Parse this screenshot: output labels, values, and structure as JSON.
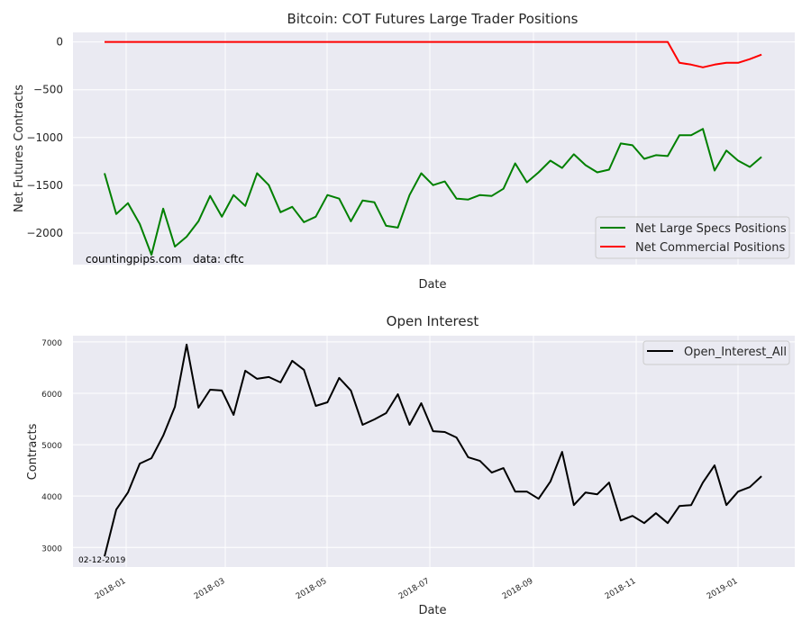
{
  "chart_data": [
    {
      "type": "line",
      "title": "Bitcoin: COT Futures Large Trader Positions",
      "xlabel": "Date",
      "ylabel": "Net Futures Contracts",
      "ylim": [
        -2330,
        100
      ],
      "yticks": [
        0,
        -500,
        -1000,
        -1500,
        -2000
      ],
      "ytick_labels": [
        "0",
        "−500",
        "−1000",
        "−1500",
        "−2000"
      ],
      "grid": true,
      "legend_position": "lower right",
      "x_start": "2017-12-19",
      "x_freq": "weekly",
      "series": [
        {
          "name": "Net Large Specs Positions",
          "color": "#008000",
          "values": [
            -1374,
            -1801,
            -1687,
            -1905,
            -2227,
            -1744,
            -2142,
            -2038,
            -1877,
            -1611,
            -1829,
            -1602,
            -1716,
            -1374,
            -1498,
            -1782,
            -1725,
            -1886,
            -1829,
            -1602,
            -1640,
            -1877,
            -1659,
            -1678,
            -1924,
            -1943,
            -1602,
            -1374,
            -1498,
            -1460,
            -1640,
            -1649,
            -1602,
            -1611,
            -1536,
            -1270,
            -1469,
            -1365,
            -1242,
            -1318,
            -1175,
            -1289,
            -1365,
            -1336,
            -1062,
            -1081,
            -1223,
            -1185,
            -1194,
            -976,
            -976,
            -910,
            -1346,
            -1137,
            -1242,
            -1308,
            -1204
          ]
        },
        {
          "name": "Net Commercial Positions",
          "color": "#ff0000",
          "values": [
            0,
            0,
            0,
            0,
            0,
            0,
            0,
            0,
            0,
            0,
            0,
            0,
            0,
            0,
            0,
            0,
            0,
            0,
            0,
            0,
            0,
            0,
            0,
            0,
            0,
            0,
            0,
            0,
            0,
            0,
            0,
            0,
            0,
            0,
            0,
            0,
            0,
            0,
            0,
            0,
            0,
            0,
            0,
            0,
            0,
            0,
            0,
            0,
            0,
            -218,
            -237,
            -265,
            -237,
            -218,
            -218,
            -180,
            -133
          ]
        }
      ],
      "annotations": [
        "countingpips.com",
        "data: cftc"
      ]
    },
    {
      "type": "line",
      "title": "Open Interest",
      "xlabel": "Date",
      "ylabel": "Contracts",
      "ylim": [
        2620,
        7120
      ],
      "yticks": [
        3000,
        4000,
        5000,
        6000,
        7000
      ],
      "ytick_labels": [
        "3000",
        "4000",
        "5000",
        "6000",
        "7000"
      ],
      "xtick_labels": [
        "2018-01",
        "2018-03",
        "2018-05",
        "2018-07",
        "2018-09",
        "2018-11",
        "2019-01"
      ],
      "grid": true,
      "legend_position": "upper right",
      "x_start": "2017-12-19",
      "x_freq": "weekly",
      "series": [
        {
          "name": "Open_Interest_All",
          "color": "#000000",
          "values": [
            2825,
            3737,
            4070,
            4632,
            4737,
            5175,
            5737,
            6947,
            5719,
            6070,
            6053,
            5579,
            6439,
            6281,
            6316,
            6211,
            6632,
            6456,
            5754,
            5825,
            6298,
            6053,
            5386,
            5491,
            5614,
            5982,
            5386,
            5807,
            5263,
            5246,
            5140,
            4754,
            4684,
            4456,
            4544,
            4088,
            4088,
            3947,
            4281,
            4860,
            3825,
            4070,
            4035,
            4263,
            3526,
            3614,
            3474,
            3667,
            3474,
            3807,
            3825,
            4263,
            4596,
            3825,
            4088,
            4175,
            4386
          ]
        }
      ],
      "annotations": [
        "02-12-2019"
      ]
    }
  ]
}
